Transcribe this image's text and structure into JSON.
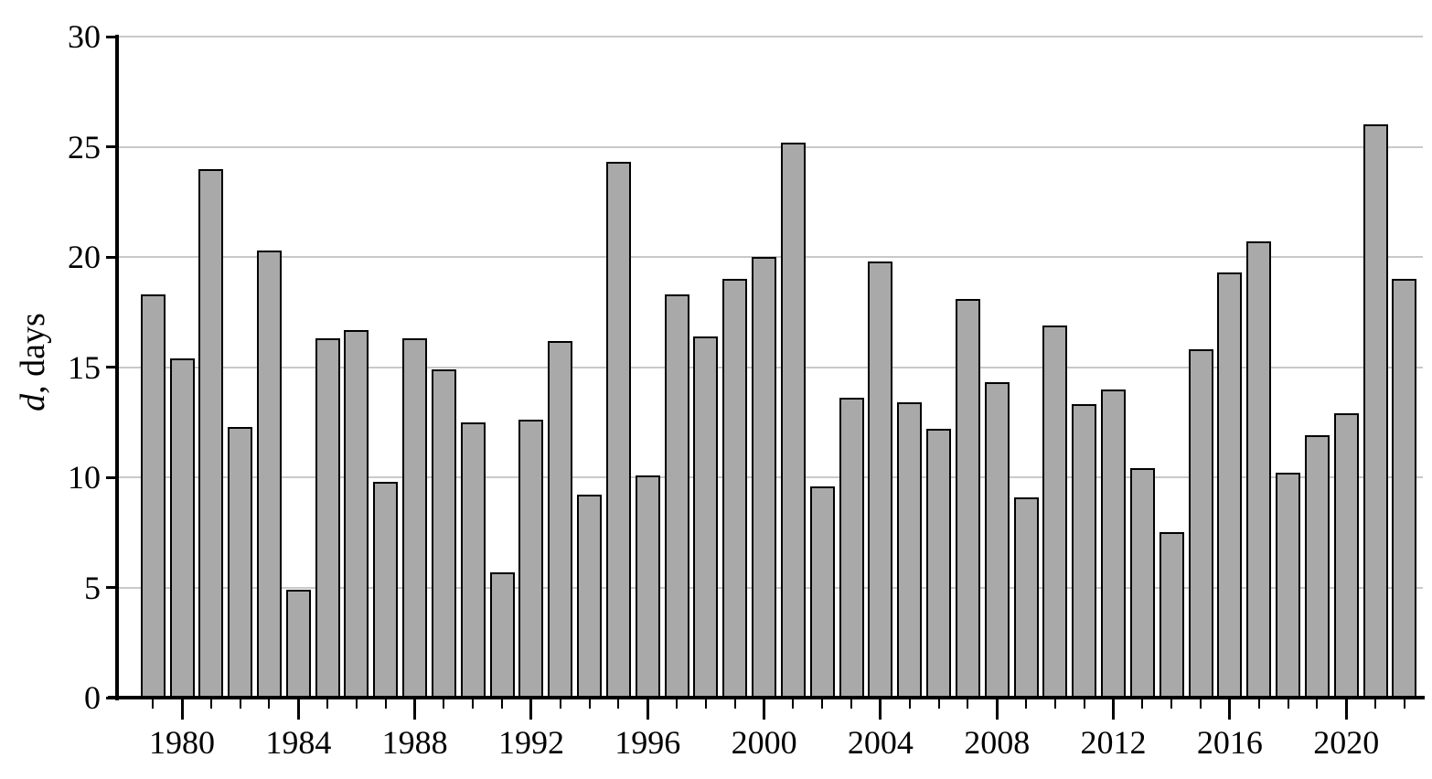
{
  "chart_data": {
    "type": "bar",
    "x": [
      1979,
      1980,
      1981,
      1982,
      1983,
      1984,
      1985,
      1986,
      1987,
      1988,
      1989,
      1990,
      1991,
      1992,
      1993,
      1994,
      1995,
      1996,
      1997,
      1998,
      1999,
      2000,
      2001,
      2002,
      2003,
      2004,
      2005,
      2006,
      2007,
      2008,
      2009,
      2010,
      2011,
      2012,
      2013,
      2014,
      2015,
      2016,
      2017,
      2018,
      2019,
      2020,
      2021,
      2022
    ],
    "values": [
      18.3,
      15.4,
      24.0,
      12.3,
      20.3,
      4.9,
      16.3,
      16.7,
      9.8,
      16.3,
      14.9,
      12.5,
      5.7,
      12.6,
      16.2,
      9.2,
      24.3,
      10.1,
      18.3,
      16.4,
      19.0,
      20.0,
      25.2,
      9.6,
      13.6,
      19.8,
      13.4,
      12.2,
      18.1,
      14.3,
      9.1,
      16.9,
      13.3,
      14.0,
      10.4,
      7.5,
      15.8,
      19.3,
      20.7,
      10.2,
      11.9,
      12.9,
      26.0,
      19.0
    ],
    "title": "",
    "xlabel": "",
    "ylabel_italic": "d",
    "ylabel_rest": ", days",
    "ylim": [
      0,
      30
    ],
    "y_ticks": [
      0,
      5,
      10,
      15,
      20,
      25,
      30
    ],
    "y_tick_labels": [
      "0",
      "5",
      "10",
      "15",
      "20",
      "25",
      "30"
    ],
    "x_tick_labels": [
      "1980",
      "1984",
      "1988",
      "1992",
      "1996",
      "2000",
      "2004",
      "2008",
      "2012",
      "2016",
      "2020"
    ],
    "grid": true,
    "legend": "none",
    "bar_fill": "#a9a9a9",
    "bar_border": "#000000",
    "gridline_color": "#c9c9c9"
  }
}
